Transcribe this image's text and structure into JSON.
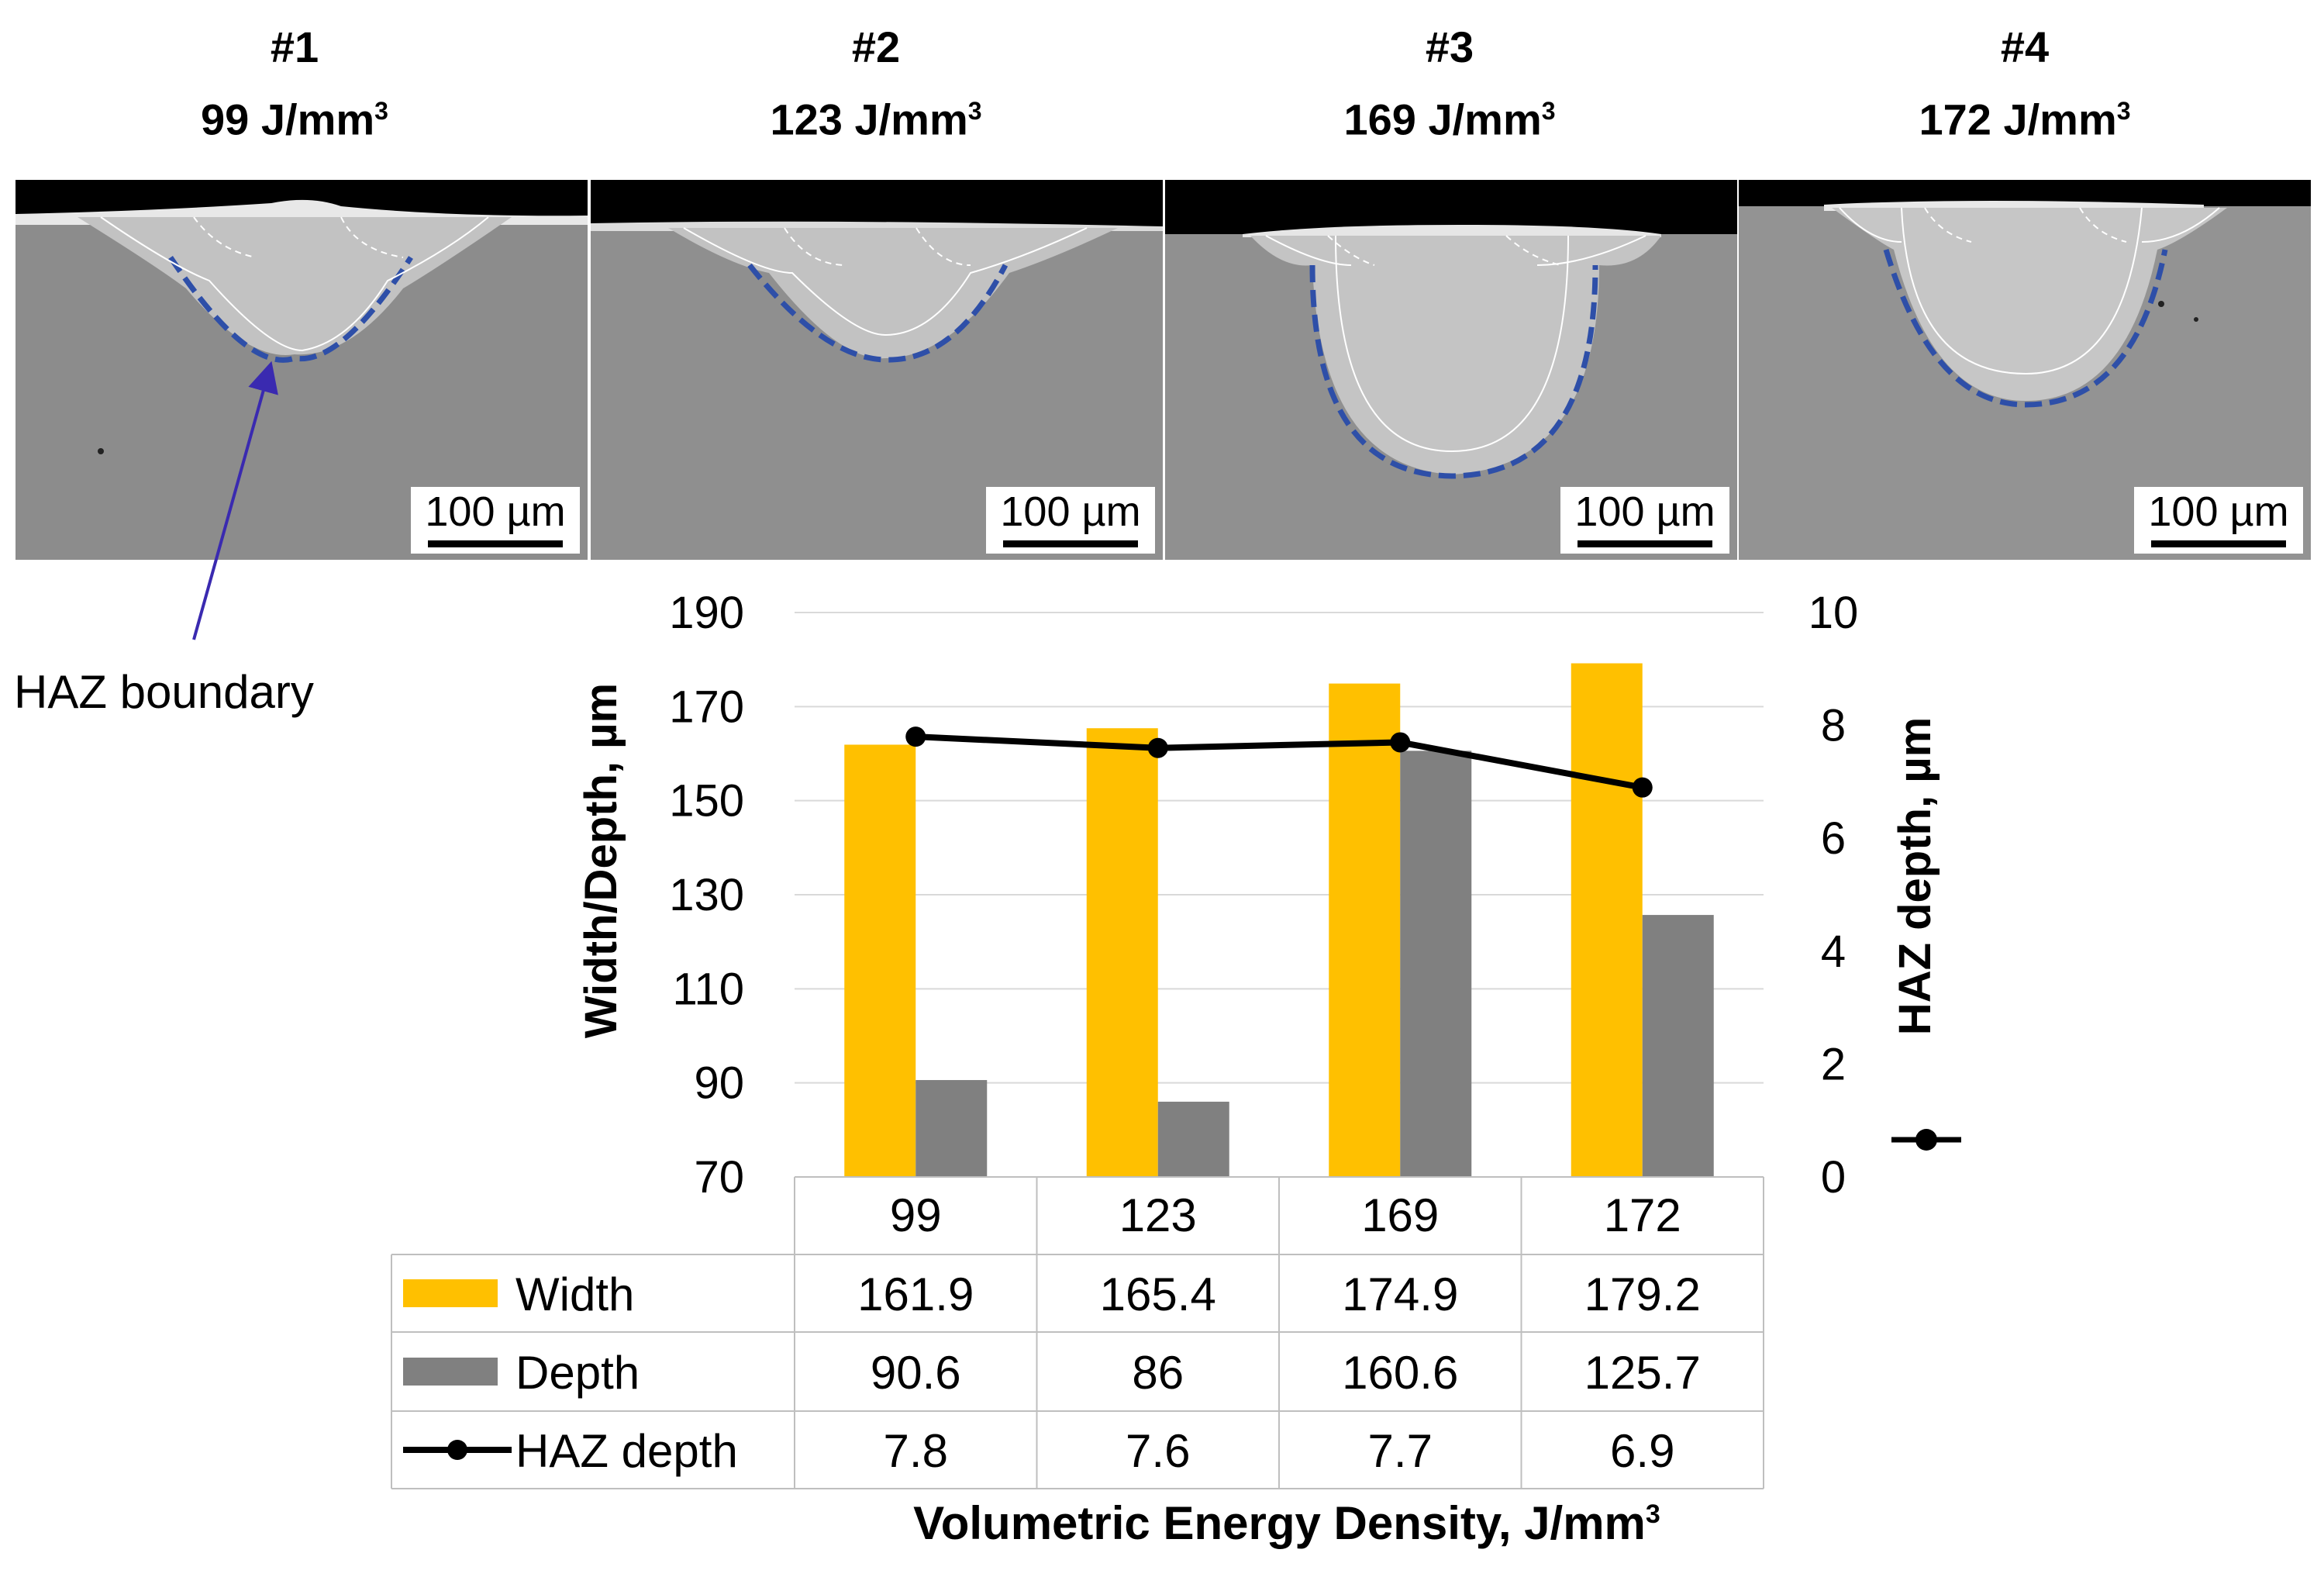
{
  "panels": [
    {
      "id": "#1",
      "energy": "99 J/mm",
      "sup": "3",
      "scale": "100 µm"
    },
    {
      "id": "#2",
      "energy": "123 J/mm",
      "sup": "3",
      "scale": "100 µm"
    },
    {
      "id": "#3",
      "energy": "169 J/mm",
      "sup": "3",
      "scale": "100 µm"
    },
    {
      "id": "#4",
      "energy": "172 J/mm",
      "sup": "3",
      "scale": "100 µm"
    }
  ],
  "annotation": "HAZ boundary",
  "colors": {
    "width": "#ffc000",
    "depth": "#808080",
    "haz": "#000000",
    "boundary": "#2e4fa8",
    "arrow": "#3a2ab0"
  },
  "chart_data": {
    "type": "bar",
    "categories": [
      "99",
      "123",
      "169",
      "172"
    ],
    "series": [
      {
        "name": "Width",
        "values": [
          161.9,
          165.4,
          174.9,
          179.2
        ],
        "axis": "left"
      },
      {
        "name": "Depth",
        "values": [
          90.6,
          86,
          160.6,
          125.7
        ],
        "axis": "left"
      },
      {
        "name": "HAZ depth",
        "values": [
          7.8,
          7.6,
          7.7,
          6.9
        ],
        "axis": "right",
        "kind": "line"
      }
    ],
    "table_values": {
      "Width": [
        "161.9",
        "165.4",
        "174.9",
        "179.2"
      ],
      "Depth": [
        "90.6",
        "86",
        "160.6",
        "125.7"
      ],
      "HAZ depth": [
        "7.8",
        "7.6",
        "7.7",
        "6.9"
      ]
    },
    "ylabel": "Width/Depth, µm",
    "y2label": "HAZ depth, µm",
    "xlabel": "Volumetric Energy Density, J/mm",
    "xlabel_sup": "3",
    "ylim": [
      70,
      190
    ],
    "yticks": [
      70,
      90,
      110,
      130,
      150,
      170,
      190
    ],
    "y2lim": [
      0,
      10
    ],
    "y2ticks": [
      0,
      2,
      4,
      6,
      8,
      10
    ],
    "grid": true,
    "legend": "data-table"
  }
}
